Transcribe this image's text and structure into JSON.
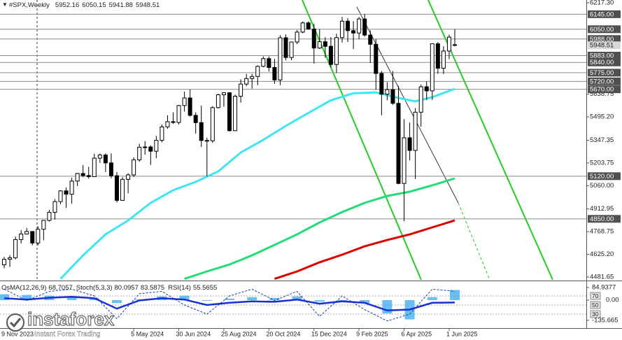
{
  "chart_data": {
    "type": "candlestick",
    "title": "#SPX,Weekly",
    "open": [
      4559,
      4594,
      4604,
      4719,
      4754,
      4770,
      4697,
      4784,
      4840,
      4891,
      4959,
      5027,
      5006,
      5089,
      5137,
      5124,
      5117,
      5234,
      5254,
      5204,
      5123,
      4967,
      5100,
      5128,
      5223,
      5303,
      5305,
      5278,
      5347,
      5432,
      5465,
      5460,
      5567,
      5615,
      5505,
      5459,
      5346,
      5344,
      5554,
      5635,
      5648,
      5408,
      5626,
      5703,
      5738,
      5751,
      5815,
      5864,
      5808,
      5729,
      5996,
      5871,
      5969,
      6032,
      6090,
      6051,
      5931,
      5971,
      5942,
      5827,
      5997,
      6101,
      6041,
      6026,
      6115,
      6013,
      5955,
      5770,
      5639,
      5668,
      5581,
      5074,
      5363,
      5283,
      5525,
      5686,
      5660,
      5958,
      5803,
      5912,
      5952.16
    ],
    "high": [
      4609,
      4620,
      4738,
      4779,
      4793,
      4772,
      4803,
      4842,
      4907,
      4975,
      5031,
      5048,
      5111,
      5141,
      5190,
      5179,
      5262,
      5264,
      5264,
      5264,
      5147,
      5114,
      5139,
      5239,
      5325,
      5342,
      5315,
      5375,
      5447,
      5505,
      5524,
      5571,
      5655,
      5669,
      5524,
      5566,
      5364,
      5564,
      5642,
      5651,
      5651,
      5636,
      5733,
      5767,
      5768,
      5822,
      5878,
      5878,
      5862,
      6012,
      6017,
      5972,
      6045,
      6099,
      6100,
      6085,
      6050,
      6000,
      6000,
      6022,
      6128,
      6120,
      6101,
      6128,
      6147,
      6043,
      5987,
      5786,
      5715,
      5786,
      5691,
      5481,
      5459,
      5551,
      5700,
      5720,
      5959,
      5969,
      5943,
      6016,
      6050.15
    ],
    "low": [
      4537,
      4546,
      4593,
      4694,
      4751,
      4683,
      4683,
      4715,
      4833,
      4845,
      4942,
      4920,
      4946,
      5057,
      5114,
      5104,
      5116,
      5204,
      5146,
      5107,
      4953,
      4964,
      5011,
      5114,
      5211,
      5256,
      5191,
      5234,
      5334,
      5420,
      5451,
      5447,
      5529,
      5497,
      5390,
      5305,
      5119,
      5331,
      5548,
      5560,
      5402,
      5406,
      5585,
      5690,
      5674,
      5696,
      5809,
      5782,
      5703,
      5696,
      5853,
      5854,
      5955,
      6024,
      6047,
      5833,
      5925,
      5870,
      5808,
      5773,
      5966,
      5969,
      5924,
      5986,
      6003,
      5837,
      5667,
      5505,
      5601,
      5572,
      5069,
      4835,
      5220,
      5101,
      5433,
      5602,
      5603,
      5768,
      5767,
      5861,
      5941.88
    ],
    "close": [
      4594,
      4604,
      4719,
      4754,
      4770,
      4697,
      4784,
      4840,
      4891,
      4959,
      5027,
      5006,
      5089,
      5137,
      5124,
      5117,
      5234,
      5254,
      5204,
      5123,
      4967,
      5100,
      5128,
      5223,
      5303,
      5305,
      5278,
      5347,
      5432,
      5465,
      5460,
      5567,
      5615,
      5505,
      5459,
      5346,
      5344,
      5554,
      5635,
      5648,
      5408,
      5626,
      5703,
      5738,
      5751,
      5815,
      5864,
      5808,
      5729,
      5996,
      5871,
      5969,
      6032,
      6090,
      6051,
      5931,
      5971,
      5942,
      5827,
      5997,
      6101,
      6041,
      6026,
      6115,
      6013,
      5955,
      5770,
      5639,
      5668,
      5581,
      5074,
      5363,
      5283,
      5525,
      5686,
      5660,
      5958,
      5803,
      5912,
      6000,
      5948.51
    ],
    "ylim": [
      4464,
      6235
    ],
    "yticks": [
      {
        "value": 6217.3,
        "label": "6217.30"
      },
      {
        "value": 5638.75,
        "label": "5638.75"
      },
      {
        "value": 5495.2,
        "label": "5495.20"
      },
      {
        "value": 5347.35,
        "label": "5347.35"
      },
      {
        "value": 5203.75,
        "label": "5203.75"
      },
      {
        "value": 5060,
        "label": "5060.00"
      },
      {
        "value": 4912.95,
        "label": "4912.95"
      },
      {
        "value": 4768.75,
        "label": "4768.75"
      },
      {
        "value": 4625.2,
        "label": "4625.20"
      },
      {
        "value": 4481.65,
        "label": "4481.65"
      }
    ],
    "levels": [
      {
        "value": 6145,
        "label": "6145.00"
      },
      {
        "value": 6050,
        "label": "6050.00"
      },
      {
        "value": 5988,
        "label": "5988.00"
      },
      {
        "value": 5883,
        "label": "5883.00"
      },
      {
        "value": 5840,
        "label": "5840.00"
      },
      {
        "value": 5775,
        "label": "5775.00"
      },
      {
        "value": 5720,
        "label": "5720.00"
      },
      {
        "value": 5670,
        "label": "5670.00"
      },
      {
        "value": 5120,
        "label": "5120.00"
      },
      {
        "value": 4850,
        "label": "4850.00"
      }
    ],
    "xticks": [
      {
        "value": -3,
        "label": "9 Nov 2023"
      },
      {
        "value": 23,
        "label": "5 May 2024"
      },
      {
        "value": 31,
        "label": "30 Jun 2024"
      },
      {
        "value": 39,
        "label": "25 Aug 2024"
      },
      {
        "value": 47,
        "label": "20 Oct 2024"
      },
      {
        "value": 55,
        "label": "15 Dec 2024"
      },
      {
        "value": 63,
        "label": "9 Feb 2025"
      },
      {
        "value": 71,
        "label": "6 Apr 2025"
      },
      {
        "value": 79,
        "label": "1 Jun 2025"
      }
    ],
    "moving_averages": [
      {
        "color": "#3ee6f0",
        "x": [
          10,
          14,
          18,
          22,
          26,
          30,
          34,
          38,
          42,
          46,
          50,
          54,
          58,
          62,
          66,
          70,
          73,
          76,
          80
        ],
        "values": [
          4470,
          4619,
          4752,
          4840,
          4951,
          5031,
          5084,
          5150,
          5270,
          5350,
          5438,
          5520,
          5600,
          5645,
          5650,
          5615,
          5594,
          5620,
          5673
        ]
      },
      {
        "color": "#22dd77",
        "x": [
          32,
          36,
          40,
          44,
          48,
          52,
          56,
          60,
          64,
          68,
          72,
          76,
          80
        ],
        "values": [
          4470,
          4517,
          4561,
          4619,
          4685,
          4752,
          4827,
          4893,
          4951,
          4995,
          5022,
          5062,
          5106
        ]
      },
      {
        "color": "#dd0000",
        "x": [
          48,
          52,
          56,
          60,
          64,
          68,
          72,
          76,
          80
        ],
        "values": [
          4470,
          4517,
          4575,
          4623,
          4676,
          4716,
          4752,
          4796,
          4840
        ]
      }
    ],
    "oscillator": {
      "indicators": [
        {
          "name": "OsMA(12,26,9)",
          "values": [
            68.7057
          ]
        },
        {
          "name": "Stoch(5,3,3)",
          "values": [
            80.0957,
            83.5875
          ]
        },
        {
          "name": "RSI(14)",
          "values": [
            55.5655
          ]
        }
      ],
      "osma_ticks": [
        84.9377,
        {
          "value": 0,
          "label": "0.00"
        },
        -135.665
      ],
      "level_ticks": [
        70,
        50,
        30
      ],
      "x": [
        0,
        4,
        8,
        12,
        16,
        20,
        24,
        28,
        32,
        36,
        40,
        44,
        48,
        52,
        56,
        60,
        64,
        68,
        72,
        76,
        80
      ],
      "osma": [
        40,
        35,
        30,
        25,
        15,
        -20,
        5,
        25,
        30,
        -5,
        10,
        20,
        15,
        25,
        -10,
        -5,
        -20,
        -90,
        -130,
        20,
        68.7057
      ],
      "rsi": [
        65,
        62,
        66,
        68,
        65,
        42,
        60,
        65,
        62,
        50,
        55,
        58,
        57,
        62,
        53,
        58,
        55,
        38,
        40,
        55,
        55.5655
      ],
      "stoch": [
        85,
        60,
        80,
        85,
        70,
        20,
        75,
        80,
        50,
        30,
        70,
        85,
        60,
        80,
        25,
        70,
        40,
        15,
        30,
        85,
        80.0957
      ]
    },
    "watermark": {
      "brand": "instaforex",
      "tagline": "Instant Forex Trading"
    }
  }
}
